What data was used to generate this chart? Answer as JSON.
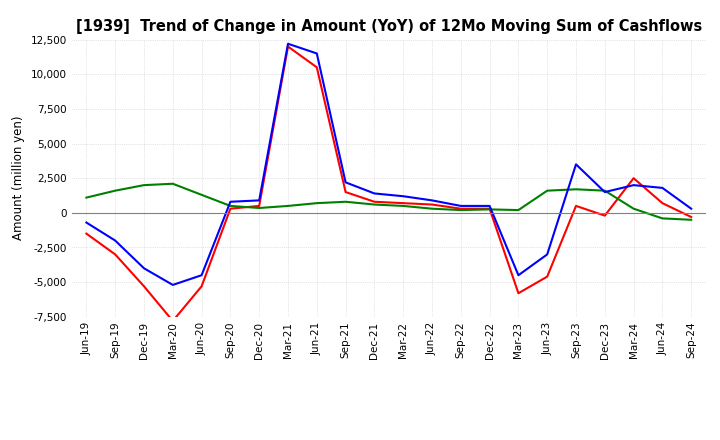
{
  "title": "[1939]  Trend of Change in Amount (YoY) of 12Mo Moving Sum of Cashflows",
  "ylabel": "Amount (million yen)",
  "ylim": [
    -7500,
    12500
  ],
  "yticks": [
    -7500,
    -5000,
    -2500,
    0,
    2500,
    5000,
    7500,
    10000,
    12500
  ],
  "x_labels": [
    "Jun-19",
    "Sep-19",
    "Dec-19",
    "Mar-20",
    "Jun-20",
    "Sep-20",
    "Dec-20",
    "Mar-21",
    "Jun-21",
    "Sep-21",
    "Dec-21",
    "Mar-22",
    "Jun-22",
    "Sep-22",
    "Dec-22",
    "Mar-23",
    "Jun-23",
    "Sep-23",
    "Dec-23",
    "Mar-24",
    "Jun-24",
    "Sep-24"
  ],
  "operating": [
    -1500,
    -3000,
    -5300,
    -7800,
    -5300,
    300,
    500,
    12000,
    10500,
    1500,
    800,
    700,
    600,
    300,
    300,
    -5800,
    -4600,
    500,
    -200,
    2500,
    700,
    -300
  ],
  "investing": [
    1100,
    1600,
    2000,
    2100,
    1300,
    500,
    350,
    500,
    700,
    800,
    600,
    500,
    300,
    200,
    250,
    200,
    1600,
    1700,
    1600,
    300,
    -400,
    -500
  ],
  "free": [
    -700,
    -2000,
    -4000,
    -5200,
    -4500,
    800,
    900,
    12200,
    11500,
    2200,
    1400,
    1200,
    900,
    500,
    500,
    -4500,
    -3000,
    3500,
    1500,
    2000,
    1800,
    300
  ],
  "operating_color": "#FF0000",
  "investing_color": "#008000",
  "free_color": "#0000FF",
  "background_color": "#FFFFFF",
  "grid_color": "#CCCCCC",
  "grid_style": "dotted"
}
